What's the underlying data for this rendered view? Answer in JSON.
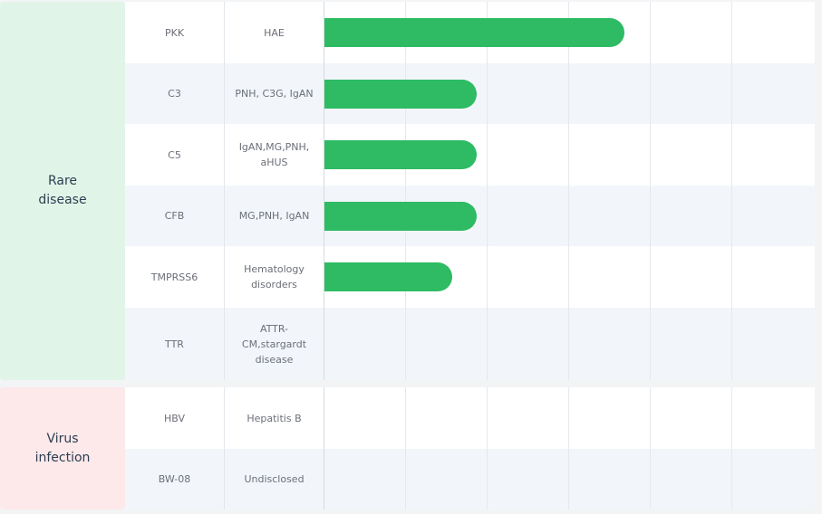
{
  "max_stage": 6,
  "groups": [
    {
      "category_lines": [
        "Rare",
        "disease"
      ],
      "color": "#e1f4e8",
      "rows": [
        {
          "target": "PKK",
          "indication_lines": [
            "HAE"
          ],
          "progress": 3.67
        },
        {
          "target": "C3",
          "indication_lines": [
            "PNH, C3G, IgAN"
          ],
          "progress": 1.86
        },
        {
          "target": "C5",
          "indication_lines": [
            "IgAN,MG,PNH,",
            "aHUS"
          ],
          "progress": 1.86
        },
        {
          "target": "CFB",
          "indication_lines": [
            "MG,PNH, IgAN"
          ],
          "progress": 1.86
        },
        {
          "target": "TMPRSS6",
          "indication_lines": [
            "Hematology",
            "disorders"
          ],
          "progress": 1.56
        },
        {
          "target": "TTR",
          "indication_lines": [
            "ATTR-",
            "CM,stargardt",
            "disease"
          ],
          "progress": 0
        }
      ]
    },
    {
      "category_lines": [
        "Virus",
        "infection"
      ],
      "color": "#fde8ea",
      "rows": [
        {
          "target": "HBV",
          "indication_lines": [
            "Hepatitis B"
          ],
          "progress": 0
        },
        {
          "target": "BW-08",
          "indication_lines": [
            "Undisclosed"
          ],
          "progress": 0
        }
      ]
    }
  ],
  "colors": {
    "bar": "#2ebb63",
    "row_alt": "#f2f6fa",
    "row_white": "#ffffff"
  }
}
